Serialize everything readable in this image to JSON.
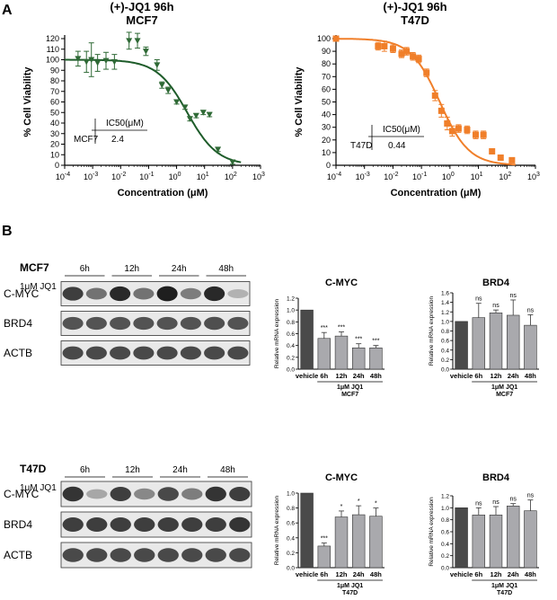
{
  "panel_a_label": "A",
  "panel_b_label": "B",
  "colors": {
    "mcf7_curve": "#1e5c2a",
    "mcf7_marker": "#2f6a36",
    "t47d_curve": "#f07f2a",
    "t47d_marker": "#f07f2a",
    "vehicle_bar": "#4a4a4a",
    "treated_bar": "#a9a9ad"
  },
  "dose_response": [
    {
      "title_line1": "(+)-JQ1 96h",
      "title_line2": "MCF7",
      "ylabel": "% Cell Viability",
      "xlabel": "Concentration (μM)",
      "ic50_header": "IC50(μM)",
      "ic50_cell": "MCF7",
      "ic50_value": "2.4",
      "ic50_num": 2.4,
      "marker": "triangle",
      "ymax": 120,
      "yticks": [
        0,
        10,
        20,
        30,
        40,
        50,
        60,
        70,
        80,
        90,
        100,
        110,
        120
      ],
      "xtick_exponents": [
        "-4",
        "-3",
        "-2",
        "-1",
        "0",
        "1",
        "2",
        "3"
      ],
      "points": [
        {
          "x": 0.0003,
          "y": 101,
          "err": 7
        },
        {
          "x": 0.0006,
          "y": 98,
          "err": 10
        },
        {
          "x": 0.0009,
          "y": 100,
          "err": 16
        },
        {
          "x": 0.0015,
          "y": 97,
          "err": 8
        },
        {
          "x": 0.003,
          "y": 99,
          "err": 8
        },
        {
          "x": 0.006,
          "y": 98,
          "err": 7
        },
        {
          "x": 0.02,
          "y": 118,
          "err": 8
        },
        {
          "x": 0.04,
          "y": 118,
          "err": 7
        },
        {
          "x": 0.08,
          "y": 108,
          "err": 4
        },
        {
          "x": 0.2,
          "y": 95,
          "err": 5
        },
        {
          "x": 0.3,
          "y": 76,
          "err": 3
        },
        {
          "x": 0.5,
          "y": 71,
          "err": 3
        },
        {
          "x": 1,
          "y": 60,
          "err": 2
        },
        {
          "x": 2,
          "y": 55,
          "err": 2
        },
        {
          "x": 3,
          "y": 44,
          "err": 2
        },
        {
          "x": 5,
          "y": 47,
          "err": 2
        },
        {
          "x": 9,
          "y": 50,
          "err": 2
        },
        {
          "x": 15,
          "y": 48,
          "err": 2
        },
        {
          "x": 30,
          "y": 15,
          "err": 2
        },
        {
          "x": 100,
          "y": 3,
          "err": 2
        }
      ],
      "fit": {
        "top": 100,
        "bottom": 0,
        "hill": 0.8
      }
    },
    {
      "title_line1": "(+)-JQ1 96h",
      "title_line2": "T47D",
      "ylabel": "% Cell Viability",
      "xlabel": "Concentration (μM)",
      "ic50_header": "IC50(μM)",
      "ic50_cell": "T47D",
      "ic50_value": "0.44",
      "ic50_num": 0.44,
      "marker": "square",
      "ymax": 100,
      "yticks": [
        0,
        10,
        20,
        30,
        40,
        50,
        60,
        70,
        80,
        90,
        100
      ],
      "xtick_exponents": [
        "-4",
        "-3",
        "-2",
        "-1",
        "0",
        "1",
        "2",
        "3"
      ],
      "points": [
        {
          "x": 0.0001,
          "y": 100,
          "err": 2
        },
        {
          "x": 0.003,
          "y": 94,
          "err": 3
        },
        {
          "x": 0.005,
          "y": 94,
          "err": 4
        },
        {
          "x": 0.01,
          "y": 92,
          "err": 3
        },
        {
          "x": 0.02,
          "y": 88,
          "err": 3
        },
        {
          "x": 0.03,
          "y": 90,
          "err": 3
        },
        {
          "x": 0.05,
          "y": 86,
          "err": 3
        },
        {
          "x": 0.08,
          "y": 84,
          "err": 3
        },
        {
          "x": 0.15,
          "y": 73,
          "err": 3
        },
        {
          "x": 0.3,
          "y": 55,
          "err": 4
        },
        {
          "x": 0.5,
          "y": 43,
          "err": 5
        },
        {
          "x": 0.8,
          "y": 33,
          "err": 5
        },
        {
          "x": 1.2,
          "y": 27,
          "err": 4
        },
        {
          "x": 2,
          "y": 29,
          "err": 3
        },
        {
          "x": 4,
          "y": 28,
          "err": 3
        },
        {
          "x": 8,
          "y": 24,
          "err": 3
        },
        {
          "x": 15,
          "y": 24,
          "err": 3
        },
        {
          "x": 30,
          "y": 11,
          "err": 2
        },
        {
          "x": 60,
          "y": 6,
          "err": 2
        },
        {
          "x": 150,
          "y": 4,
          "err": 2
        }
      ],
      "fit": {
        "top": 100,
        "bottom": 0,
        "hill": 0.85
      }
    }
  ],
  "blots": [
    {
      "cell_line": "MCF7",
      "timepoints": [
        "6h",
        "12h",
        "24h",
        "48h"
      ],
      "treatment_label": "1μM JQ1",
      "signs": [
        "-",
        "+",
        "-",
        "+",
        "-",
        "+",
        "-",
        "+"
      ],
      "proteins": [
        "C-MYC",
        "BRD4",
        "ACTB"
      ],
      "band_intensity": {
        "C-MYC": [
          0.8,
          0.55,
          0.9,
          0.55,
          0.95,
          0.5,
          0.9,
          0.25
        ],
        "BRD4": [
          0.7,
          0.7,
          0.7,
          0.7,
          0.7,
          0.7,
          0.72,
          0.7
        ],
        "ACTB": [
          0.75,
          0.75,
          0.75,
          0.75,
          0.75,
          0.75,
          0.75,
          0.75
        ]
      }
    },
    {
      "cell_line": "T47D",
      "timepoints": [
        "6h",
        "12h",
        "24h",
        "48h"
      ],
      "treatment_label": "1μM JQ1",
      "signs": [
        "-",
        "+",
        "-",
        "+",
        "-",
        "+",
        "-",
        "+"
      ],
      "proteins": [
        "C-MYC",
        "BRD4",
        "ACTB"
      ],
      "band_intensity": {
        "C-MYC": [
          0.85,
          0.3,
          0.8,
          0.45,
          0.75,
          0.5,
          0.85,
          0.8
        ],
        "BRD4": [
          0.8,
          0.8,
          0.8,
          0.8,
          0.8,
          0.8,
          0.8,
          0.85
        ],
        "ACTB": [
          0.75,
          0.75,
          0.75,
          0.75,
          0.75,
          0.75,
          0.75,
          0.75
        ]
      }
    }
  ],
  "chart_data": [
    {
      "type": "bar",
      "title": "C-MYC",
      "ylabel": "Relative mRNA expression",
      "categories": [
        "vehicle",
        "6h",
        "12h",
        "24h",
        "48h"
      ],
      "values": [
        1.0,
        0.52,
        0.56,
        0.36,
        0.36
      ],
      "errors": [
        0,
        0.1,
        0.07,
        0.07,
        0.04
      ],
      "significance": [
        "",
        "***",
        "***",
        "***",
        "***"
      ],
      "ylim": [
        0,
        1.2
      ],
      "yticks": [
        0.0,
        0.2,
        0.4,
        0.6,
        0.8,
        1.0,
        1.2
      ],
      "group_label": "1μM JQ1",
      "cell_label": "MCF7"
    },
    {
      "type": "bar",
      "title": "BRD4",
      "ylabel": "Relative mRNA expression",
      "categories": [
        "vehicle",
        "6h",
        "12h",
        "24h",
        "48h"
      ],
      "values": [
        1.0,
        1.08,
        1.18,
        1.13,
        0.92
      ],
      "errors": [
        0,
        0.3,
        0.06,
        0.32,
        0.22
      ],
      "significance": [
        "",
        "ns",
        "ns",
        "ns",
        "ns"
      ],
      "ylim": [
        0,
        1.6
      ],
      "yticks": [
        0.0,
        0.2,
        0.4,
        0.6,
        0.8,
        1.0,
        1.2,
        1.4,
        1.6
      ],
      "group_label": "1μM JQ1",
      "cell_label": "MCF7"
    },
    {
      "type": "bar",
      "title": "C-MYC",
      "ylabel": "Relative mRNA expression",
      "categories": [
        "vehicle",
        "6h",
        "12h",
        "24h",
        "48h"
      ],
      "values": [
        1.0,
        0.29,
        0.68,
        0.71,
        0.69
      ],
      "errors": [
        0,
        0.04,
        0.08,
        0.12,
        0.11
      ],
      "significance": [
        "",
        "***",
        "*",
        "*",
        "*"
      ],
      "ylim": [
        0,
        1.0
      ],
      "yticks": [
        0.0,
        0.2,
        0.4,
        0.6,
        0.8,
        1.0
      ],
      "group_label": "1μM JQ1",
      "cell_label": "T47D"
    },
    {
      "type": "bar",
      "title": "BRD4",
      "ylabel": "Relative mRNA expression",
      "categories": [
        "vehicle",
        "6h",
        "12h",
        "24h",
        "48h"
      ],
      "values": [
        1.0,
        0.88,
        0.88,
        1.03,
        0.95
      ],
      "errors": [
        0,
        0.12,
        0.14,
        0.04,
        0.18
      ],
      "significance": [
        "",
        "ns",
        "ns",
        "ns",
        "ns"
      ],
      "ylim": [
        0,
        1.2
      ],
      "yticks": [
        0.0,
        0.2,
        0.4,
        0.6,
        0.8,
        1.0,
        1.2
      ],
      "group_label": "1μM JQ1",
      "cell_label": "T47D"
    }
  ]
}
